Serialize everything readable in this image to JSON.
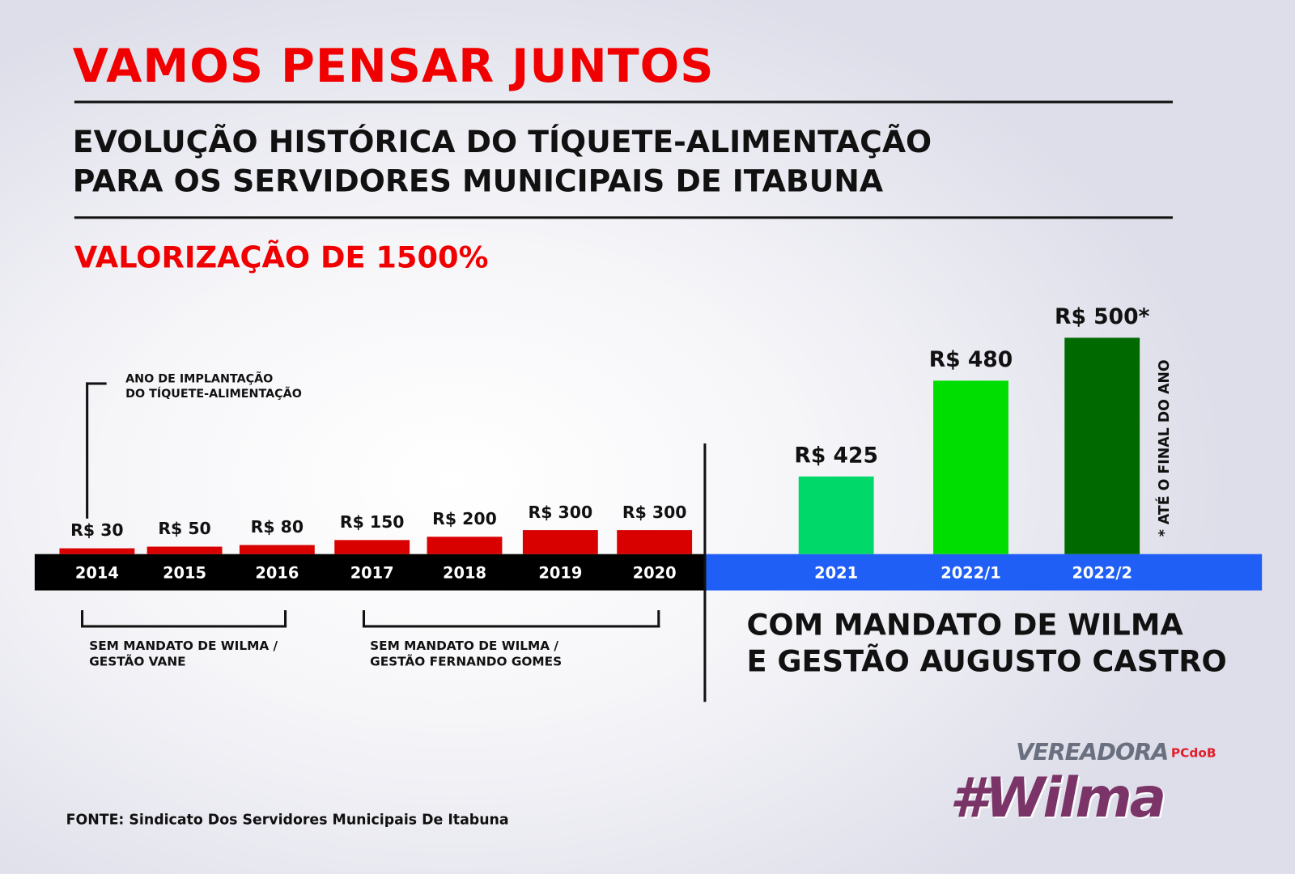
{
  "header": {
    "title": "VAMOS PENSAR JUNTOS",
    "subtitle_line1": "EVOLUÇÃO HISTÓRICA DO TÍQUETE-ALIMENTAÇÃO",
    "subtitle_line2": "PARA OS SERVIDORES MUNICIPAIS DE ITABUNA",
    "highlight": "VALORIZAÇÃO DE 1500%"
  },
  "annotations": {
    "implant_line1": "ANO DE IMPLANTAÇÃO",
    "implant_line2": "DO TÍQUETE-ALIMENTAÇÃO",
    "vane_line1": "SEM MANDATO DE WILMA /",
    "vane_line2": "GESTÃO VANE",
    "fernando_line1": "SEM MANDATO DE WILMA /",
    "fernando_line2": "GESTÃO FERNANDO GOMES",
    "wilma_line1": "COM MANDATO DE WILMA",
    "wilma_line2": "E GESTÃO AUGUSTO CASTRO",
    "footnote": "* ATÉ O FINAL DO ANO"
  },
  "source": "FONTE: Sindicato Dos Servidores Municipais De Itabuna",
  "logo": {
    "line1": "VEREADORA",
    "party": "PCdoB",
    "name": "#Wilma"
  },
  "colors": {
    "red_bar": "#d90000",
    "band_black": "#000000",
    "band_blue": "#1f5ff5",
    "green_2021": "#00d86a",
    "green_2022_1": "#00dd00",
    "green_2022_2": "#006a00",
    "title_red": "#f00000"
  },
  "chart_data": {
    "type": "bar",
    "title": "EVOLUÇÃO HISTÓRICA DO TÍQUETE-ALIMENTAÇÃO",
    "categories": [
      "2014",
      "2015",
      "2016",
      "2017",
      "2018",
      "2019",
      "2020",
      "2021",
      "2022/1",
      "2022/2"
    ],
    "values": [
      30,
      50,
      80,
      150,
      200,
      300,
      300,
      425,
      480,
      500
    ],
    "labels": [
      "R$ 30",
      "R$ 50",
      "R$ 80",
      "R$ 150",
      "R$ 200",
      "R$ 300",
      "R$ 300",
      "R$ 425",
      "R$ 480",
      "R$ 500*"
    ],
    "unit": "R$",
    "xlabel": "",
    "ylabel": "",
    "grid": false
  }
}
